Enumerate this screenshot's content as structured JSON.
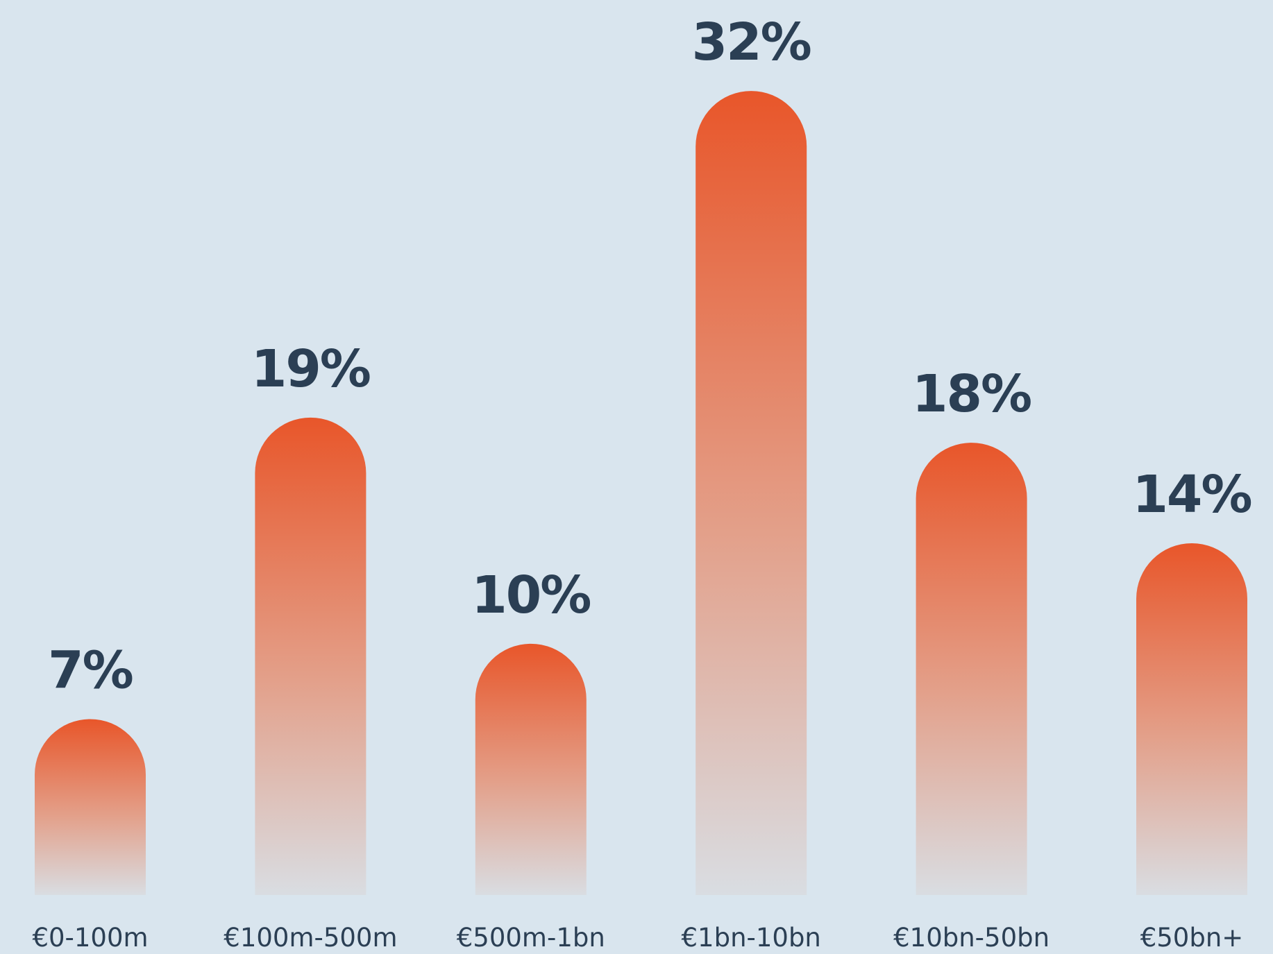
{
  "chart_data": {
    "type": "bar",
    "categories": [
      "€0-100m",
      "€100m-500m",
      "€500m-1bn",
      "€1bn-10bn",
      "€10bn-50bn",
      "€50bn+"
    ],
    "values": [
      7,
      19,
      10,
      32,
      18,
      14
    ],
    "data_labels": [
      "7%",
      "19%",
      "10%",
      "32%",
      "18%",
      "14%"
    ],
    "title": "",
    "xlabel": "",
    "ylabel": "",
    "ylim": [
      0,
      32
    ],
    "grid": false,
    "legend": "none"
  },
  "colors": {
    "background": "#d9e5ee",
    "bar_top": "#e8562a",
    "bar_bottom": "#d9dde2",
    "label_text": "#2b3f54"
  }
}
